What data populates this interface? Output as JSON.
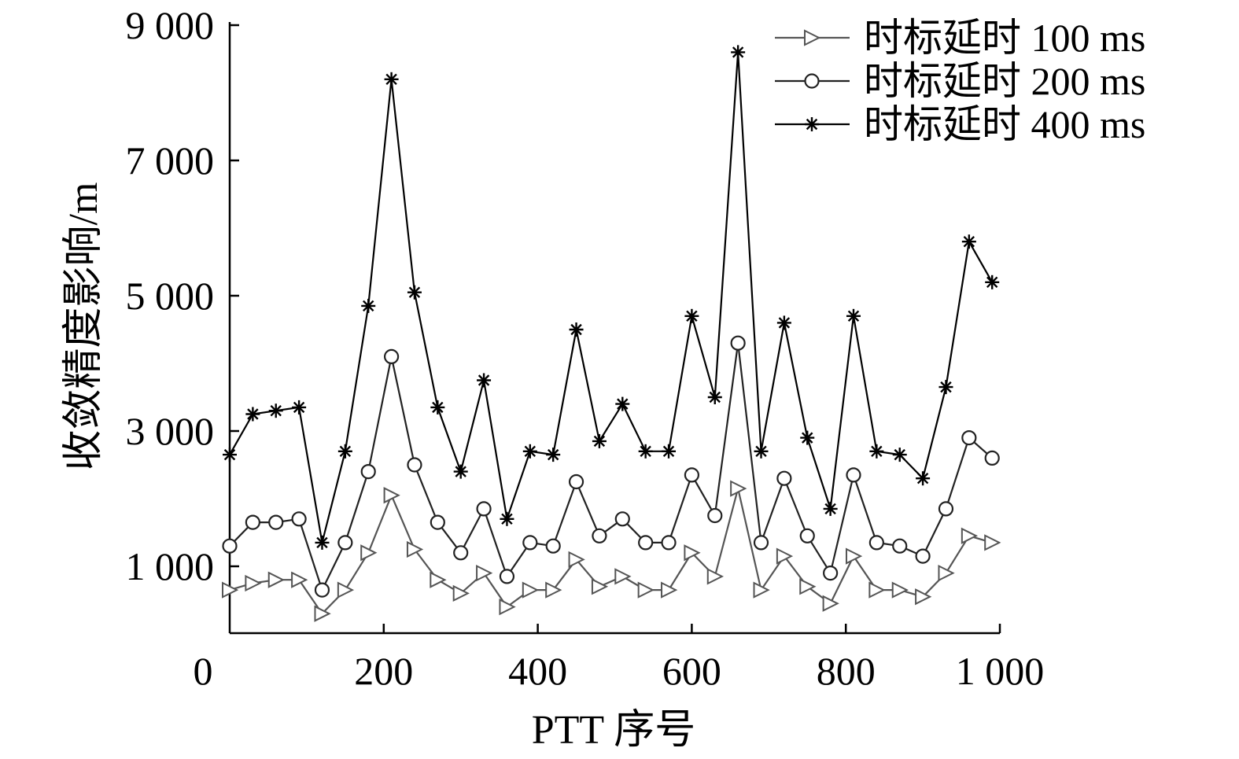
{
  "chart_data": {
    "type": "line",
    "xlabel": "PTT 序号",
    "ylabel": "收敛精度影响/m",
    "xlim": [
      0,
      1000
    ],
    "ylim": [
      0,
      9000
    ],
    "xticks": [
      0,
      200,
      400,
      600,
      800,
      1000
    ],
    "xtick_labels": [
      "0",
      "200",
      "400",
      "600",
      "800",
      "1 000"
    ],
    "yticks": [
      1000,
      3000,
      5000,
      7000,
      9000
    ],
    "ytick_labels": [
      "1 000",
      "3 000",
      "5 000",
      "7 000",
      "9 000"
    ],
    "legend_position": "top-right",
    "grid": false,
    "x": [
      0,
      30,
      60,
      90,
      120,
      150,
      180,
      210,
      240,
      270,
      300,
      330,
      360,
      390,
      420,
      450,
      480,
      510,
      540,
      570,
      600,
      630,
      660,
      690,
      720,
      750,
      780,
      810,
      840,
      870,
      900,
      930,
      960,
      990
    ],
    "series": [
      {
        "name": "时标延时 100 ms",
        "marker": "triangle-right",
        "color": "#555555",
        "values": [
          650,
          750,
          800,
          800,
          300,
          650,
          1200,
          2050,
          1250,
          800,
          600,
          900,
          400,
          650,
          650,
          1100,
          700,
          850,
          650,
          650,
          1200,
          850,
          2150,
          650,
          1150,
          700,
          450,
          1150,
          650,
          650,
          550,
          900,
          1450,
          1350
        ]
      },
      {
        "name": "时标延时 200 ms",
        "marker": "circle",
        "color": "#222222",
        "values": [
          1300,
          1650,
          1650,
          1700,
          650,
          1350,
          2400,
          4100,
          2500,
          1650,
          1200,
          1850,
          850,
          1350,
          1300,
          2250,
          1450,
          1700,
          1350,
          1350,
          2350,
          1750,
          4300,
          1350,
          2300,
          1450,
          900,
          2350,
          1350,
          1300,
          1150,
          1850,
          2900,
          2600
        ]
      },
      {
        "name": "时标延时 400 ms",
        "marker": "star",
        "color": "#000000",
        "values": [
          2650,
          3250,
          3300,
          3350,
          1350,
          2700,
          4850,
          8200,
          5050,
          3350,
          2400,
          3750,
          1700,
          2700,
          2650,
          4500,
          2850,
          3400,
          2700,
          2700,
          4700,
          3500,
          8600,
          2700,
          4600,
          2900,
          1850,
          4700,
          2700,
          2650,
          2300,
          3650,
          5800,
          5200
        ]
      }
    ]
  }
}
